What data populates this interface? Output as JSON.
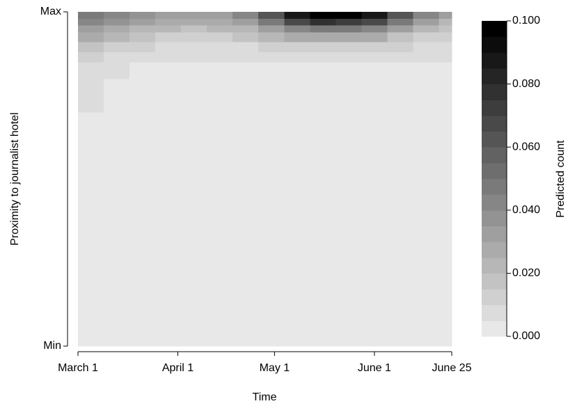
{
  "chart_data": {
    "type": "contour",
    "x_label": "Time",
    "y_label": "Proximity to journalist hotel",
    "colorbar_label": "Predicted count",
    "xlim": [
      0,
      116
    ],
    "xticks": [
      {
        "value": 0,
        "label": "March 1"
      },
      {
        "value": 31,
        "label": "April 1"
      },
      {
        "value": 61,
        "label": "May 1"
      },
      {
        "value": 92,
        "label": "June 1"
      },
      {
        "value": 116,
        "label": "June 25"
      }
    ],
    "ylim": [
      0,
      1
    ],
    "yticks": [
      {
        "value": 0,
        "label": "Min"
      },
      {
        "value": 1,
        "label": "Max"
      }
    ],
    "x_bins": [
      0,
      8,
      16,
      24,
      32,
      40,
      48,
      56,
      64,
      72,
      80,
      88,
      96,
      104,
      112,
      116
    ],
    "y_bins": [
      0,
      0.7,
      0.8,
      0.85,
      0.88,
      0.91,
      0.94,
      0.96,
      0.98,
      1
    ],
    "z": [
      [
        0.002,
        0.002,
        0.002,
        0.002,
        0.002,
        0.002,
        0.002,
        0.002,
        0.002,
        0.002,
        0.002,
        0.002,
        0.002,
        0.002,
        0.002
      ],
      [
        0.006,
        0.003,
        0.002,
        0.002,
        0.002,
        0.002,
        0.002,
        0.002,
        0.002,
        0.002,
        0.002,
        0.002,
        0.002,
        0.002,
        0.002
      ],
      [
        0.008,
        0.006,
        0.003,
        0.002,
        0.002,
        0.002,
        0.002,
        0.002,
        0.002,
        0.002,
        0.002,
        0.002,
        0.002,
        0.002,
        0.002
      ],
      [
        0.011,
        0.009,
        0.007,
        0.006,
        0.006,
        0.006,
        0.006,
        0.006,
        0.006,
        0.006,
        0.006,
        0.006,
        0.006,
        0.006,
        0.006
      ],
      [
        0.017,
        0.014,
        0.011,
        0.009,
        0.008,
        0.008,
        0.009,
        0.011,
        0.013,
        0.014,
        0.014,
        0.013,
        0.011,
        0.008,
        0.006
      ],
      [
        0.025,
        0.021,
        0.017,
        0.014,
        0.013,
        0.014,
        0.016,
        0.02,
        0.025,
        0.028,
        0.028,
        0.025,
        0.019,
        0.013,
        0.01
      ],
      [
        0.032,
        0.028,
        0.024,
        0.02,
        0.019,
        0.02,
        0.024,
        0.032,
        0.042,
        0.048,
        0.047,
        0.042,
        0.03,
        0.02,
        0.015
      ],
      [
        0.04,
        0.035,
        0.03,
        0.026,
        0.025,
        0.027,
        0.033,
        0.048,
        0.065,
        0.075,
        0.074,
        0.065,
        0.045,
        0.03,
        0.022
      ],
      [
        0.045,
        0.04,
        0.035,
        0.032,
        0.03,
        0.032,
        0.04,
        0.06,
        0.085,
        0.098,
        0.097,
        0.085,
        0.06,
        0.04,
        0.03
      ]
    ],
    "levels": [
      0,
      0.005,
      0.01,
      0.015,
      0.02,
      0.025,
      0.03,
      0.035,
      0.04,
      0.045,
      0.05,
      0.055,
      0.06,
      0.065,
      0.07,
      0.075,
      0.08,
      0.085,
      0.09,
      0.095,
      0.1
    ],
    "color_low": "#e8e8e8",
    "color_high": "#000000",
    "colorbar_lim": [
      0,
      0.1
    ],
    "colorbar_ticks": [
      {
        "value": 0,
        "label": "0.000"
      },
      {
        "value": 0.02,
        "label": "0.020"
      },
      {
        "value": 0.04,
        "label": "0.040"
      },
      {
        "value": 0.06,
        "label": "0.060"
      },
      {
        "value": 0.08,
        "label": "0.080"
      },
      {
        "value": 0.1,
        "label": "0.100"
      }
    ]
  }
}
